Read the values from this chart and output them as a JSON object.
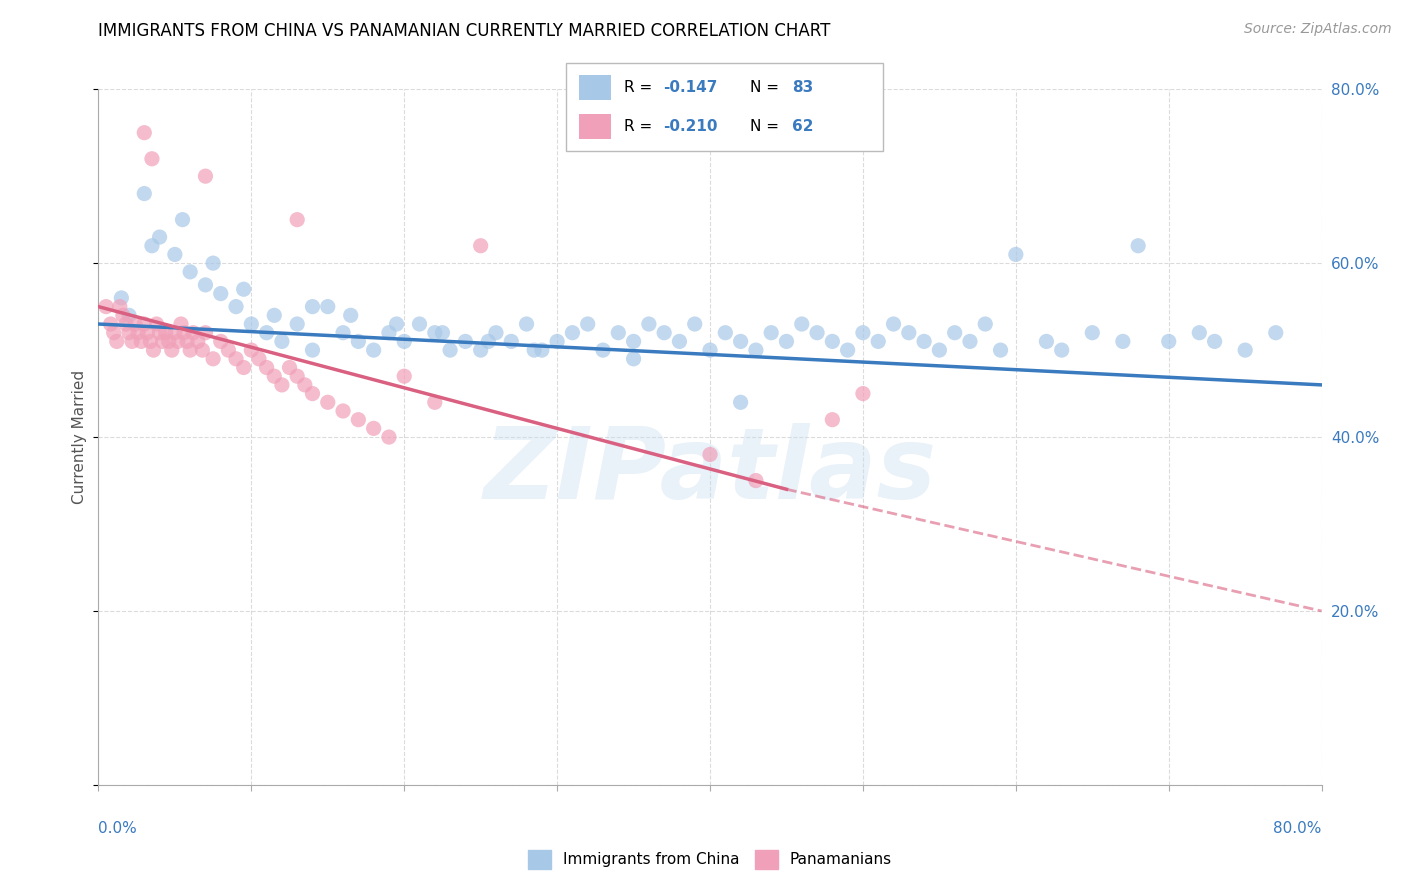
{
  "title": "IMMIGRANTS FROM CHINA VS PANAMANIAN CURRENTLY MARRIED CORRELATION CHART",
  "source_text": "Source: ZipAtlas.com",
  "ylabel": "Currently Married",
  "xlim": [
    0.0,
    80.0
  ],
  "ylim": [
    0.0,
    80.0
  ],
  "blue_R": -0.147,
  "blue_N": 83,
  "pink_R": -0.21,
  "pink_N": 62,
  "blue_color": "#a8c8e8",
  "pink_color": "#f0a0b8",
  "blue_line_color": "#3a7abf",
  "pink_line_color": "#d96080",
  "grid_color": "#cccccc",
  "legend_label_blue": "Immigrants from China",
  "legend_label_pink": "Panamanians",
  "ytick_right_labels": [
    "20.0%",
    "40.0%",
    "60.0%",
    "80.0%"
  ],
  "ytick_right_values": [
    20.0,
    40.0,
    60.0,
    80.0
  ],
  "blue_trendline": [
    0.0,
    53.0,
    80.0,
    46.0
  ],
  "pink_trendline_solid": [
    0.0,
    55.0,
    45.0,
    34.0
  ],
  "pink_trendline_dash": [
    45.0,
    34.0,
    80.0,
    20.0
  ],
  "blue_x": [
    1.5,
    2.0,
    3.0,
    4.0,
    5.0,
    6.0,
    7.0,
    8.0,
    9.0,
    10.0,
    11.0,
    12.0,
    13.0,
    14.0,
    15.0,
    16.0,
    17.0,
    18.0,
    19.0,
    20.0,
    21.0,
    22.0,
    23.0,
    24.0,
    25.0,
    26.0,
    27.0,
    28.0,
    29.0,
    30.0,
    31.0,
    32.0,
    33.0,
    34.0,
    35.0,
    36.0,
    37.0,
    38.0,
    39.0,
    40.0,
    41.0,
    42.0,
    43.0,
    44.0,
    45.0,
    46.0,
    47.0,
    48.0,
    49.0,
    50.0,
    51.0,
    52.0,
    53.0,
    54.0,
    55.0,
    56.0,
    57.0,
    58.0,
    59.0,
    60.0,
    62.0,
    63.0,
    65.0,
    67.0,
    68.0,
    70.0,
    72.0,
    73.0,
    75.0,
    77.0,
    3.5,
    5.5,
    7.5,
    9.5,
    11.5,
    14.0,
    16.5,
    19.5,
    22.5,
    25.5,
    28.5,
    35.0,
    42.0
  ],
  "blue_y": [
    56.0,
    54.0,
    68.0,
    63.0,
    61.0,
    59.0,
    57.5,
    56.5,
    55.0,
    53.0,
    52.0,
    51.0,
    53.0,
    50.0,
    55.0,
    52.0,
    51.0,
    50.0,
    52.0,
    51.0,
    53.0,
    52.0,
    50.0,
    51.0,
    50.0,
    52.0,
    51.0,
    53.0,
    50.0,
    51.0,
    52.0,
    53.0,
    50.0,
    52.0,
    51.0,
    53.0,
    52.0,
    51.0,
    53.0,
    50.0,
    52.0,
    51.0,
    50.0,
    52.0,
    51.0,
    53.0,
    52.0,
    51.0,
    50.0,
    52.0,
    51.0,
    53.0,
    52.0,
    51.0,
    50.0,
    52.0,
    51.0,
    53.0,
    50.0,
    61.0,
    51.0,
    50.0,
    52.0,
    51.0,
    62.0,
    51.0,
    52.0,
    51.0,
    50.0,
    52.0,
    62.0,
    65.0,
    60.0,
    57.0,
    54.0,
    55.0,
    54.0,
    53.0,
    52.0,
    51.0,
    50.0,
    49.0,
    44.0
  ],
  "pink_x": [
    0.5,
    0.8,
    1.0,
    1.2,
    1.4,
    1.6,
    1.8,
    2.0,
    2.2,
    2.4,
    2.6,
    2.8,
    3.0,
    3.2,
    3.4,
    3.6,
    3.8,
    4.0,
    4.2,
    4.4,
    4.6,
    4.8,
    5.0,
    5.2,
    5.4,
    5.6,
    5.8,
    6.0,
    6.2,
    6.5,
    6.8,
    7.0,
    7.5,
    8.0,
    8.5,
    9.0,
    9.5,
    10.0,
    10.5,
    11.0,
    11.5,
    12.0,
    12.5,
    13.0,
    13.5,
    14.0,
    15.0,
    16.0,
    17.0,
    18.0,
    19.0,
    20.0,
    22.0,
    7.0,
    13.0,
    25.0,
    40.0,
    43.0,
    48.0,
    50.0,
    3.0,
    3.5
  ],
  "pink_y": [
    55.0,
    53.0,
    52.0,
    51.0,
    55.0,
    54.0,
    53.0,
    52.0,
    51.0,
    53.0,
    52.0,
    51.0,
    53.0,
    52.0,
    51.0,
    50.0,
    53.0,
    52.0,
    51.0,
    52.0,
    51.0,
    50.0,
    52.0,
    51.0,
    53.0,
    52.0,
    51.0,
    50.0,
    52.0,
    51.0,
    50.0,
    52.0,
    49.0,
    51.0,
    50.0,
    49.0,
    48.0,
    50.0,
    49.0,
    48.0,
    47.0,
    46.0,
    48.0,
    47.0,
    46.0,
    45.0,
    44.0,
    43.0,
    42.0,
    41.0,
    40.0,
    47.0,
    44.0,
    70.0,
    65.0,
    62.0,
    38.0,
    35.0,
    42.0,
    45.0,
    75.0,
    72.0
  ]
}
